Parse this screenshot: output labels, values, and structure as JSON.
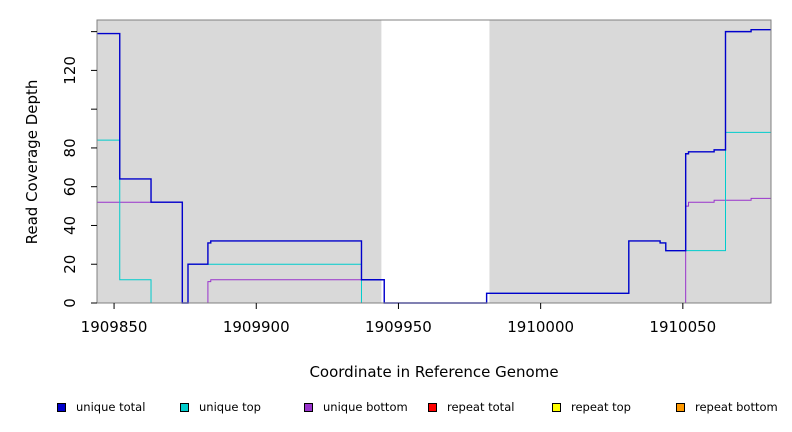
{
  "chart_data": {
    "type": "line",
    "step": true,
    "xlabel": "Coordinate in Reference Genome",
    "ylabel": "Read Coverage Depth",
    "xlim": [
      1909844,
      1910081
    ],
    "ylim": [
      0,
      146
    ],
    "x_ticks": [
      {
        "value": 1909850,
        "label": "1909850"
      },
      {
        "value": 1909900,
        "label": "1909900"
      },
      {
        "value": 1909950,
        "label": "1909950"
      },
      {
        "value": 1910000,
        "label": "1910000"
      },
      {
        "value": 1910050,
        "label": "1910050"
      }
    ],
    "y_ticks": [
      {
        "value": 0,
        "label": "0"
      },
      {
        "value": 20,
        "label": "20"
      },
      {
        "value": 40,
        "label": "40"
      },
      {
        "value": 60,
        "label": "60"
      },
      {
        "value": 80,
        "label": "80"
      },
      {
        "value": 120,
        "label": "120"
      }
    ],
    "y_minor_ticks": [
      100,
      140
    ],
    "shaded_regions": [
      [
        1909844,
        1909944
      ],
      [
        1909982,
        1910081
      ]
    ],
    "shade_color": "#d9d9d9",
    "legend_position": "bottom",
    "series": [
      {
        "name": "unique total",
        "color": "#0000cc",
        "points": [
          [
            1909844,
            139
          ],
          [
            1909852,
            139
          ],
          [
            1909852,
            64
          ],
          [
            1909863,
            64
          ],
          [
            1909863,
            52
          ],
          [
            1909874,
            52
          ],
          [
            1909874,
            0
          ],
          [
            1909876,
            0
          ],
          [
            1909876,
            20
          ],
          [
            1909883,
            20
          ],
          [
            1909883,
            31
          ],
          [
            1909884,
            31
          ],
          [
            1909884,
            32
          ],
          [
            1909937,
            32
          ],
          [
            1909937,
            12
          ],
          [
            1909945,
            12
          ],
          [
            1909945,
            0
          ],
          [
            1909981,
            0
          ],
          [
            1909981,
            5
          ],
          [
            1910031,
            5
          ],
          [
            1910031,
            32
          ],
          [
            1910042,
            32
          ],
          [
            1910042,
            31
          ],
          [
            1910044,
            31
          ],
          [
            1910044,
            27
          ],
          [
            1910051,
            27
          ],
          [
            1910051,
            77
          ],
          [
            1910052,
            77
          ],
          [
            1910052,
            78
          ],
          [
            1910061,
            78
          ],
          [
            1910061,
            79
          ],
          [
            1910065,
            79
          ],
          [
            1910065,
            140
          ],
          [
            1910074,
            140
          ],
          [
            1910074,
            141
          ],
          [
            1910081,
            141
          ]
        ]
      },
      {
        "name": "unique top",
        "color": "#00cccc",
        "points": [
          [
            1909844,
            84
          ],
          [
            1909852,
            84
          ],
          [
            1909852,
            12
          ],
          [
            1909863,
            12
          ],
          [
            1909863,
            0
          ],
          [
            1909876,
            0
          ],
          [
            1909876,
            20
          ],
          [
            1909937,
            20
          ],
          [
            1909937,
            0
          ],
          [
            1909981,
            0
          ],
          [
            1909981,
            5
          ],
          [
            1910031,
            5
          ],
          [
            1910031,
            32
          ],
          [
            1910042,
            32
          ],
          [
            1910042,
            31
          ],
          [
            1910044,
            31
          ],
          [
            1910044,
            27
          ],
          [
            1910065,
            27
          ],
          [
            1910065,
            88
          ],
          [
            1910081,
            88
          ]
        ]
      },
      {
        "name": "unique bottom",
        "color": "#9933cc",
        "points": [
          [
            1909844,
            52
          ],
          [
            1909874,
            52
          ],
          [
            1909874,
            0
          ],
          [
            1909883,
            0
          ],
          [
            1909883,
            11
          ],
          [
            1909884,
            11
          ],
          [
            1909884,
            12
          ],
          [
            1909945,
            12
          ],
          [
            1909945,
            0
          ],
          [
            1910051,
            0
          ],
          [
            1910051,
            50
          ],
          [
            1910052,
            50
          ],
          [
            1910052,
            52
          ],
          [
            1910061,
            52
          ],
          [
            1910061,
            53
          ],
          [
            1910074,
            53
          ],
          [
            1910074,
            54
          ],
          [
            1910081,
            54
          ]
        ]
      },
      {
        "name": "repeat total",
        "color": "#ff0000",
        "points": [
          [
            1909844,
            0
          ],
          [
            1910081,
            0
          ]
        ]
      },
      {
        "name": "repeat top",
        "color": "#ffff00",
        "points": [
          [
            1909844,
            0
          ],
          [
            1910081,
            0
          ]
        ]
      },
      {
        "name": "repeat bottom",
        "color": "#ff9900",
        "points": [
          [
            1909844,
            0
          ],
          [
            1910081,
            0
          ]
        ]
      }
    ]
  }
}
